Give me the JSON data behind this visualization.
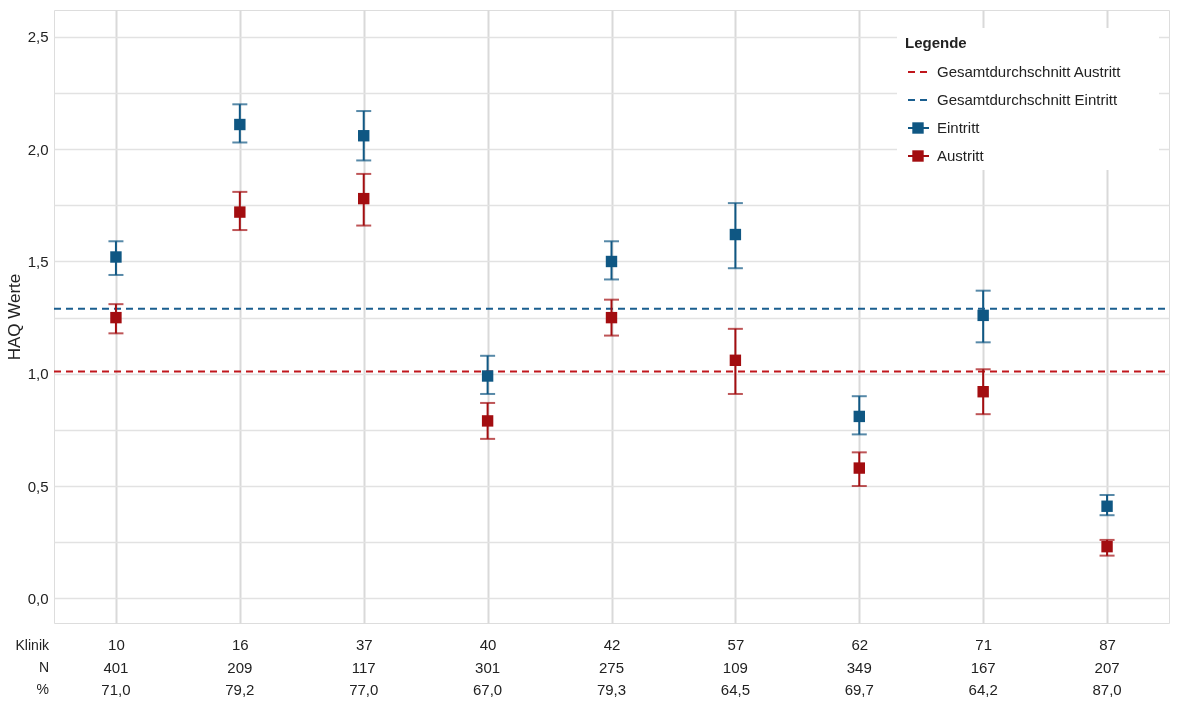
{
  "chart_data": {
    "type": "scatter",
    "ylabel": "HAQ Werte",
    "xlabel": "Klinik",
    "legend_title": "Legende",
    "legend": "top right",
    "grid": true,
    "marker": "square",
    "categories": [
      "10",
      "16",
      "37",
      "40",
      "42",
      "57",
      "62",
      "71",
      "87"
    ],
    "ylim": [
      -0.11,
      2.62
    ],
    "yticks": [
      {
        "value": 0,
        "label": "0,0"
      },
      {
        "value": 0.25,
        "label": null
      },
      {
        "value": 0.5,
        "label": "0,5"
      },
      {
        "value": 0.75,
        "label": null
      },
      {
        "value": 1,
        "label": "1,0"
      },
      {
        "value": 1.25,
        "label": null
      },
      {
        "value": 1.5,
        "label": "1,5"
      },
      {
        "value": 1.75,
        "label": null
      },
      {
        "value": 2,
        "label": "2,0"
      },
      {
        "value": 2.25,
        "label": null
      },
      {
        "value": 2.5,
        "label": "2,5"
      }
    ],
    "series": [
      {
        "name": "Eintritt",
        "color": "#0f5783",
        "values": [
          1.52,
          2.11,
          2.06,
          0.99,
          1.5,
          1.62,
          0.81,
          1.26,
          0.41
        ],
        "errors": [
          [
            1.44,
            1.59
          ],
          [
            2.03,
            2.2
          ],
          [
            1.95,
            2.17
          ],
          [
            0.91,
            1.08
          ],
          [
            1.42,
            1.59
          ],
          [
            1.47,
            1.76
          ],
          [
            0.73,
            0.9
          ],
          [
            1.14,
            1.37
          ],
          [
            0.37,
            0.46
          ]
        ]
      },
      {
        "name": "Austritt",
        "color": "#a30d10",
        "values": [
          1.25,
          1.72,
          1.78,
          0.79,
          1.25,
          1.06,
          0.58,
          0.92,
          0.23
        ],
        "errors": [
          [
            1.18,
            1.31
          ],
          [
            1.64,
            1.81
          ],
          [
            1.66,
            1.89
          ],
          [
            0.71,
            0.87
          ],
          [
            1.17,
            1.33
          ],
          [
            0.91,
            1.2
          ],
          [
            0.5,
            0.65
          ],
          [
            0.82,
            1.02
          ],
          [
            0.19,
            0.26
          ]
        ]
      }
    ],
    "ref_lines": [
      {
        "axis": "y",
        "value": 1.01,
        "label": "Gesamtdurchschnitt Austritt",
        "color": "#c0161c",
        "line_style": "dashed"
      },
      {
        "axis": "y",
        "value": 1.29,
        "label": "Gesamtdurchschnitt Eintritt",
        "color": "#1a5e8f",
        "line_style": "dashed"
      }
    ],
    "annotations": [
      "N",
      "401",
      "209",
      "117",
      "301",
      "275",
      "109",
      "349",
      "167",
      "207",
      "%",
      "71,0",
      "79,2",
      "77,0",
      "67,0",
      "79,3",
      "64,5",
      "69,7",
      "64,2",
      "87,0"
    ]
  }
}
